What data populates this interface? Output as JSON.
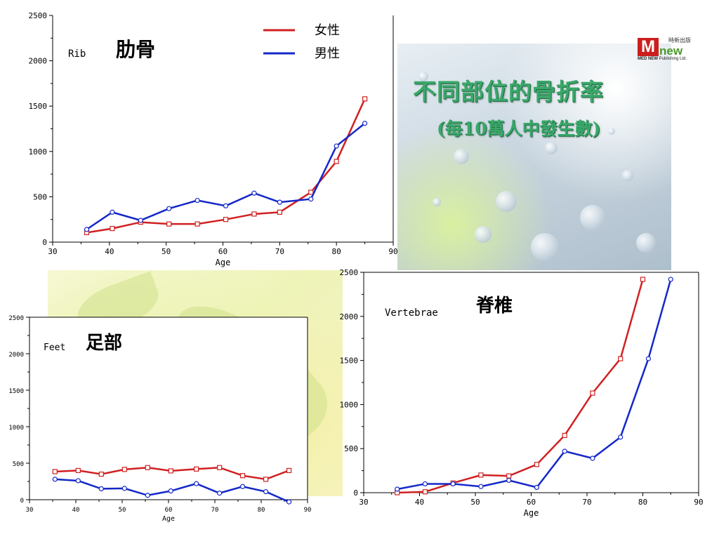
{
  "title": "不同部位的骨折率",
  "subtitle": "(每10萬人中發生數)",
  "logo": {
    "brand": "new",
    "tagline": "MED NEW",
    "chinese": "時新出版",
    "publisher": "Publishing Ltd."
  },
  "legend": {
    "female": "女性",
    "male": "男性"
  },
  "colors": {
    "female": "#d02020",
    "male": "#1428c8"
  },
  "chart_data": [
    {
      "type": "line",
      "label": "Rib",
      "label_zh": "肋骨",
      "xlabel": "Age",
      "ylabel": "",
      "xlim": [
        30,
        90
      ],
      "ylim": [
        0,
        2500
      ],
      "xticks": [
        30,
        40,
        50,
        60,
        70,
        80,
        90
      ],
      "yticks": [
        0,
        500,
        1000,
        1500,
        2000,
        2500
      ],
      "legend_position": "top-right",
      "series": [
        {
          "name": "女性",
          "color": "#d02020",
          "marker": "square",
          "x": [
            36,
            40.5,
            45.5,
            50.5,
            55.5,
            60.5,
            65.5,
            70,
            75.5,
            80,
            85
          ],
          "y": [
            105,
            150,
            220,
            200,
            200,
            250,
            310,
            330,
            550,
            890,
            1580
          ]
        },
        {
          "name": "男性",
          "color": "#1428c8",
          "marker": "circle",
          "x": [
            36,
            40.5,
            45.5,
            50.5,
            55.5,
            60.5,
            65.5,
            70,
            75.5,
            80,
            85
          ],
          "y": [
            140,
            330,
            240,
            370,
            460,
            400,
            540,
            440,
            475,
            1060,
            1310
          ]
        }
      ]
    },
    {
      "type": "line",
      "label": "Feet",
      "label_zh": "足部",
      "xlabel": "Age",
      "ylabel": "",
      "xlim": [
        30,
        90
      ],
      "ylim": [
        0,
        2500
      ],
      "xticks": [
        30,
        40,
        50,
        60,
        70,
        80,
        90
      ],
      "yticks": [
        0,
        500,
        1000,
        1500,
        2000,
        2500
      ],
      "series": [
        {
          "name": "女性",
          "color": "#d02020",
          "marker": "square",
          "x": [
            35.5,
            40.5,
            45.5,
            50.5,
            55.5,
            60.5,
            66,
            71,
            76,
            81,
            86
          ],
          "y": [
            385,
            400,
            350,
            415,
            440,
            395,
            420,
            440,
            330,
            280,
            400
          ]
        },
        {
          "name": "男性",
          "color": "#1428c8",
          "marker": "circle",
          "x": [
            35.5,
            40.5,
            45.5,
            50.5,
            55.5,
            60.5,
            66,
            71,
            76,
            81,
            86
          ],
          "y": [
            280,
            260,
            150,
            155,
            60,
            120,
            220,
            90,
            180,
            110,
            -30
          ]
        }
      ]
    },
    {
      "type": "line",
      "label": "Vertebrae",
      "label_zh": "脊椎",
      "xlabel": "Age",
      "ylabel": "",
      "xlim": [
        30,
        90
      ],
      "ylim": [
        0,
        2500
      ],
      "xticks": [
        30,
        40,
        50,
        60,
        70,
        80,
        90
      ],
      "yticks": [
        0,
        500,
        1000,
        1500,
        2000,
        2500
      ],
      "series": [
        {
          "name": "女性",
          "color": "#d02020",
          "marker": "square",
          "x": [
            36,
            41,
            46,
            51,
            56,
            61,
            66,
            71,
            76,
            80
          ],
          "y": [
            0,
            10,
            110,
            200,
            190,
            320,
            650,
            1130,
            1520,
            2420
          ]
        },
        {
          "name": "男性",
          "color": "#1428c8",
          "marker": "circle",
          "x": [
            36,
            41,
            46,
            51,
            56,
            61,
            66,
            71,
            76,
            81,
            85
          ],
          "y": [
            40,
            100,
            100,
            70,
            140,
            60,
            470,
            390,
            630,
            1520,
            2420
          ]
        }
      ]
    }
  ]
}
